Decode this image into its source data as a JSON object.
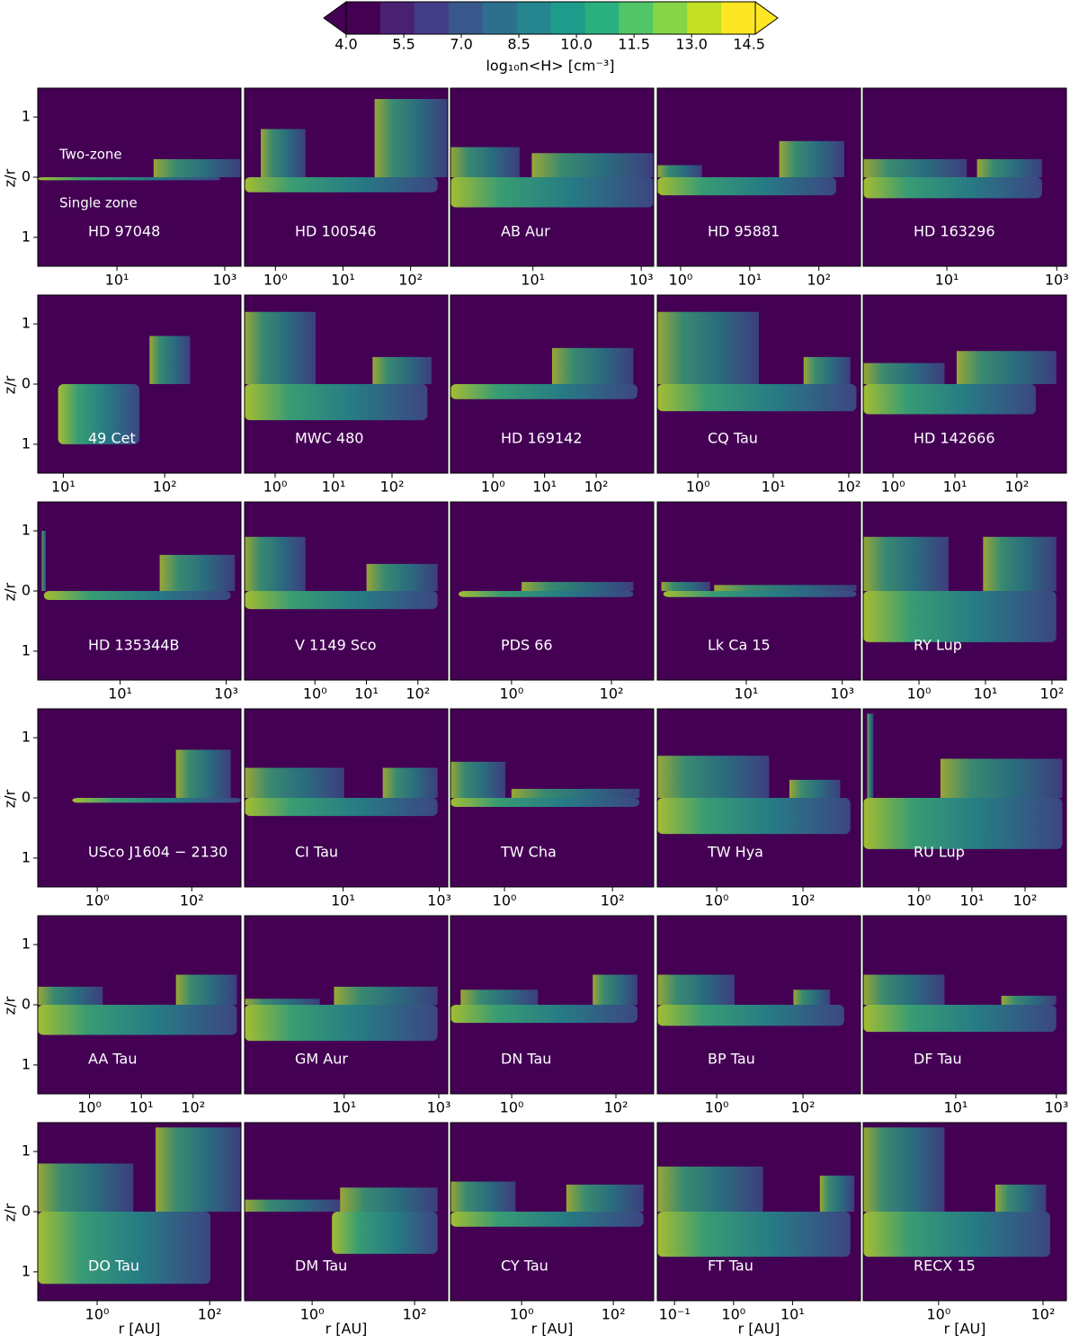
{
  "chart_data": [
    {
      "type": "colorbar",
      "label": "log₁₀n<H> [cm⁻³]",
      "xlim": [
        4,
        14.66
      ],
      "xticks": [
        {
          "value": 4,
          "label": "4.0"
        },
        5.5,
        {
          "value": 7,
          "label": "7.0"
        },
        8.5,
        {
          "value": 10,
          "label": "10.0"
        },
        11.5,
        {
          "value": 13,
          "label": "13.0"
        },
        14.5
      ]
    },
    {
      "type": "heatmap",
      "name": "HD 97048",
      "annotations": [
        "Two-zone",
        "Single zone"
      ],
      "ylabel": "z/r",
      "ylim": [
        -1.48,
        1.48
      ],
      "yticks": [
        {
          "value": -1,
          "label": "1"
        },
        0,
        1
      ],
      "xlim": [
        0.34,
        2000
      ],
      "xticks": [
        {
          "value": 10,
          "label": "10¹"
        },
        {
          "value": 1000,
          "label": "10³"
        }
      ]
    },
    {
      "type": "heatmap",
      "name": "HD 100546",
      "ylim": [
        -1.48,
        1.48
      ],
      "xlim": [
        0.35,
        355
      ],
      "xticks": [
        {
          "value": 1,
          "label": "10⁰"
        },
        {
          "value": 10,
          "label": "10¹"
        },
        {
          "value": 100,
          "label": "10²"
        }
      ]
    },
    {
      "type": "heatmap",
      "name": "AB Aur",
      "ylim": [
        -1.48,
        1.48
      ],
      "xlim": [
        0.3,
        1700
      ],
      "xticks": [
        {
          "value": 10,
          "label": "10¹"
        },
        {
          "value": 1000,
          "label": "10³"
        }
      ]
    },
    {
      "type": "heatmap",
      "name": "HD 95881",
      "ylim": [
        -1.48,
        1.48
      ],
      "xlim": [
        0.46,
        400
      ],
      "xticks": [
        {
          "value": 1,
          "label": "10⁰"
        },
        {
          "value": 10,
          "label": "10¹"
        },
        {
          "value": 100,
          "label": "10²"
        }
      ]
    },
    {
      "type": "heatmap",
      "name": "HD 163296",
      "ylim": [
        -1.48,
        1.48
      ],
      "xlim": [
        0.3,
        1500
      ],
      "xticks": [
        {
          "value": 10,
          "label": "10¹"
        },
        {
          "value": 1000,
          "label": "10³"
        }
      ]
    },
    {
      "type": "heatmap",
      "name": "49 Cet",
      "ylabel": "z/r",
      "ylim": [
        -1.48,
        1.48
      ],
      "yticks": [
        {
          "value": -1,
          "label": "1"
        },
        0,
        1
      ],
      "xlim": [
        5.6,
        565
      ],
      "xticks": [
        {
          "value": 10,
          "label": "10¹"
        },
        {
          "value": 100,
          "label": "10²"
        }
      ]
    },
    {
      "type": "heatmap",
      "name": "MWC 480",
      "ylim": [
        -1.48,
        1.48
      ],
      "xlim": [
        0.3,
        900
      ],
      "xticks": [
        {
          "value": 1,
          "label": "10⁰"
        },
        {
          "value": 10,
          "label": "10¹"
        },
        {
          "value": 100,
          "label": "10²"
        }
      ]
    },
    {
      "type": "heatmap",
      "name": "HD 169142",
      "ylim": [
        -1.48,
        1.48
      ],
      "xlim": [
        0.15,
        1300
      ],
      "xticks": [
        {
          "value": 1,
          "label": "10⁰"
        },
        {
          "value": 10,
          "label": "10¹"
        },
        {
          "value": 100,
          "label": "10²"
        }
      ]
    },
    {
      "type": "heatmap",
      "name": "CQ Tau",
      "ylim": [
        -1.48,
        1.48
      ],
      "xlim": [
        0.29,
        143
      ],
      "xticks": [
        {
          "value": 1,
          "label": "10⁰"
        },
        {
          "value": 10,
          "label": "10¹"
        },
        {
          "value": 100,
          "label": "10²"
        }
      ]
    },
    {
      "type": "heatmap",
      "name": "HD 142666",
      "ylim": [
        -1.48,
        1.48
      ],
      "xlim": [
        0.33,
        630
      ],
      "xticks": [
        {
          "value": 1,
          "label": "10⁰"
        },
        {
          "value": 10,
          "label": "10¹"
        },
        {
          "value": 100,
          "label": "10²"
        }
      ]
    },
    {
      "type": "heatmap",
      "name": "HD 135344B",
      "ylabel": "z/r",
      "ylim": [
        -1.48,
        1.48
      ],
      "yticks": [
        {
          "value": -1,
          "label": "1"
        },
        0,
        1
      ],
      "xlim": [
        0.28,
        1900
      ],
      "xticks": [
        {
          "value": 10,
          "label": "10¹"
        },
        {
          "value": 1000,
          "label": "10³"
        }
      ]
    },
    {
      "type": "heatmap",
      "name": "V 1149 Sco",
      "ylim": [
        -1.48,
        1.48
      ],
      "xlim": [
        0.043,
        380
      ],
      "xticks": [
        {
          "value": 1,
          "label": "10⁰"
        },
        {
          "value": 10,
          "label": "10¹"
        },
        {
          "value": 100,
          "label": "10²"
        }
      ]
    },
    {
      "type": "heatmap",
      "name": "PDS 66",
      "ylim": [
        -1.48,
        1.48
      ],
      "xlim": [
        0.06,
        700
      ],
      "xticks": [
        {
          "value": 1,
          "label": "10⁰"
        },
        {
          "value": 100,
          "label": "10²"
        }
      ]
    },
    {
      "type": "heatmap",
      "name": "Lk Ca 15",
      "ylim": [
        -1.48,
        1.48
      ],
      "xlim": [
        0.14,
        2400
      ],
      "xticks": [
        {
          "value": 10,
          "label": "10¹"
        },
        {
          "value": 1000,
          "label": "10³"
        }
      ]
    },
    {
      "type": "heatmap",
      "name": "RY Lup",
      "ylim": [
        -1.48,
        1.48
      ],
      "xlim": [
        0.145,
        165
      ],
      "xticks": [
        {
          "value": 1,
          "label": "10⁰"
        },
        {
          "value": 10,
          "label": "10¹"
        },
        {
          "value": 100,
          "label": "10²"
        }
      ]
    },
    {
      "type": "heatmap",
      "name": "USco J1604 − 2130",
      "ylabel": "z/r",
      "ylim": [
        -1.48,
        1.48
      ],
      "yticks": [
        {
          "value": -1,
          "label": "1"
        },
        0,
        1
      ],
      "xlim": [
        0.055,
        1100
      ],
      "xticks": [
        {
          "value": 1,
          "label": "10⁰"
        },
        {
          "value": 100,
          "label": "10²"
        }
      ]
    },
    {
      "type": "heatmap",
      "name": "CI Tau",
      "ylim": [
        -1.48,
        1.48
      ],
      "xlim": [
        0.09,
        1500
      ],
      "xticks": [
        {
          "value": 10,
          "label": "10¹"
        },
        {
          "value": 1000,
          "label": "10³"
        }
      ]
    },
    {
      "type": "heatmap",
      "name": "TW Cha",
      "ylim": [
        -1.48,
        1.48
      ],
      "xlim": [
        0.1,
        580
      ],
      "xticks": [
        {
          "value": 1,
          "label": "10⁰"
        },
        {
          "value": 100,
          "label": "10²"
        }
      ]
    },
    {
      "type": "heatmap",
      "name": "TW Hya",
      "ylim": [
        -1.48,
        1.48
      ],
      "xlim": [
        0.042,
        2150
      ],
      "xticks": [
        {
          "value": 1,
          "label": "10⁰"
        },
        {
          "value": 100,
          "label": "10²"
        }
      ]
    },
    {
      "type": "heatmap",
      "name": "RU Lup",
      "ylim": [
        -1.48,
        1.48
      ],
      "xlim": [
        0.09,
        600
      ],
      "xticks": [
        {
          "value": 1,
          "label": "10⁰"
        },
        {
          "value": 10,
          "label": "10¹"
        },
        {
          "value": 100,
          "label": "10²"
        }
      ]
    },
    {
      "type": "heatmap",
      "name": "AA Tau",
      "ylabel": "z/r",
      "ylim": [
        -1.48,
        1.48
      ],
      "yticks": [
        {
          "value": -1,
          "label": "1"
        },
        0,
        1
      ],
      "xlim": [
        0.1,
        840
      ],
      "xticks": [
        {
          "value": 1,
          "label": "10⁰"
        },
        {
          "value": 10,
          "label": "10¹"
        },
        {
          "value": 100,
          "label": "10²"
        }
      ]
    },
    {
      "type": "heatmap",
      "name": "GM Aur",
      "ylim": [
        -1.48,
        1.48
      ],
      "xlim": [
        0.078,
        1550
      ],
      "xticks": [
        {
          "value": 10,
          "label": "10¹"
        },
        {
          "value": 1000,
          "label": "10³"
        }
      ]
    },
    {
      "type": "heatmap",
      "name": "DN Tau",
      "ylim": [
        -1.48,
        1.48
      ],
      "xlim": [
        0.067,
        530
      ],
      "xticks": [
        {
          "value": 1,
          "label": "10⁰"
        },
        {
          "value": 100,
          "label": "10²"
        }
      ]
    },
    {
      "type": "heatmap",
      "name": "BP Tau",
      "ylim": [
        -1.48,
        1.48
      ],
      "xlim": [
        0.042,
        2150
      ],
      "xticks": [
        {
          "value": 1,
          "label": "10⁰"
        },
        {
          "value": 100,
          "label": "10²"
        }
      ]
    },
    {
      "type": "heatmap",
      "name": "DF Tau",
      "ylim": [
        -1.48,
        1.48
      ],
      "xlim": [
        0.145,
        1580
      ],
      "xticks": [
        {
          "value": 10,
          "label": "10¹"
        },
        {
          "value": 1000,
          "label": "10³"
        }
      ]
    },
    {
      "type": "heatmap",
      "name": "DO Tau",
      "ylabel": "z/r",
      "xlabel": "r [AU]",
      "ylim": [
        -1.48,
        1.48
      ],
      "yticks": [
        {
          "value": -1,
          "label": "1"
        },
        0,
        1
      ],
      "xlim": [
        0.088,
        360
      ],
      "xticks": [
        {
          "value": 1,
          "label": "10⁰"
        },
        {
          "value": 100,
          "label": "10²"
        }
      ]
    },
    {
      "type": "heatmap",
      "name": "DM Tau",
      "xlabel": "r [AU]",
      "ylim": [
        -1.48,
        1.48
      ],
      "xlim": [
        0.048,
        445
      ],
      "xticks": [
        {
          "value": 1,
          "label": "10⁰"
        },
        {
          "value": 100,
          "label": "10²"
        }
      ]
    },
    {
      "type": "heatmap",
      "name": "CY Tau",
      "xlabel": "r [AU]",
      "ylim": [
        -1.48,
        1.48
      ],
      "xlim": [
        0.028,
        760
      ],
      "xticks": [
        {
          "value": 1,
          "label": "10⁰"
        },
        {
          "value": 100,
          "label": "10²"
        }
      ]
    },
    {
      "type": "heatmap",
      "name": "FT Tau",
      "xlabel": "r [AU]",
      "ylim": [
        -1.48,
        1.48
      ],
      "xlim": [
        0.051,
        142
      ],
      "xticks": [
        {
          "value": 0.1,
          "label": "10⁻¹"
        },
        {
          "value": 1,
          "label": "10⁰"
        },
        {
          "value": 10,
          "label": "10¹"
        }
      ]
    },
    {
      "type": "heatmap",
      "name": "RECX 15",
      "xlabel": "r [AU]",
      "ylim": [
        -1.48,
        1.48
      ],
      "xlim": [
        0.036,
        280
      ],
      "xticks": [
        {
          "value": 1,
          "label": "10⁰"
        },
        {
          "value": 100,
          "label": "10²"
        }
      ]
    }
  ]
}
